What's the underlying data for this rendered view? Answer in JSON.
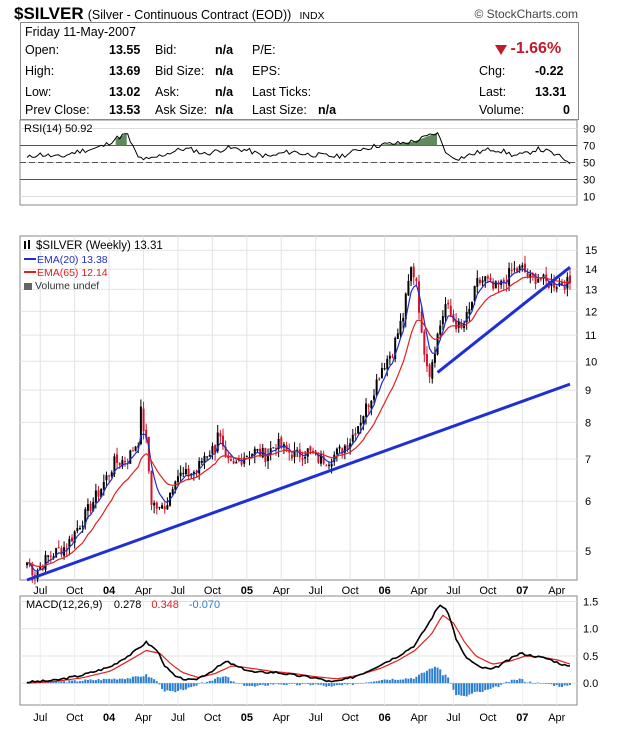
{
  "header": {
    "symbol": "$SILVER",
    "description": "(Silver - Continuous Contract (EOD))",
    "exchange": "INDX",
    "brand": "© StockCharts.com"
  },
  "quote": {
    "date": "Friday 11-May-2007",
    "open_label": "Open:",
    "open": "13.55",
    "high_label": "High:",
    "high": "13.69",
    "low_label": "Low:",
    "low": "13.02",
    "prevclose_label": "Prev Close:",
    "prevclose": "13.53",
    "bid_label": "Bid:",
    "bid": "n/a",
    "bidsize_label": "Bid Size:",
    "bidsize": "n/a",
    "ask_label": "Ask:",
    "ask": "n/a",
    "asksize_label": "Ask Size:",
    "asksize": "n/a",
    "pe_label": "P/E:",
    "eps_label": "EPS:",
    "lastticks_label": "Last Ticks:",
    "lastsize_label": "Last Size:",
    "lastsize": "n/a",
    "pct_change": "-1.66%",
    "chg_label": "Chg:",
    "chg": "-0.22",
    "last_label": "Last:",
    "last": "13.31",
    "volume_label": "Volume:",
    "volume": "0",
    "colors": {
      "down": "#c01b2a"
    }
  },
  "chart_data": [
    {
      "type": "line",
      "panel": "rsi",
      "legend": "RSI(14) 50.92",
      "y_ticks": [
        10,
        30,
        50,
        70,
        90
      ],
      "ylim": [
        0,
        100
      ],
      "reference_lines": [
        70,
        50,
        30
      ],
      "x": [
        0,
        4,
        8,
        12,
        16,
        20,
        24,
        28,
        32,
        36,
        40,
        44,
        48,
        52,
        56,
        60,
        64,
        68,
        72,
        76,
        80,
        84,
        88,
        92,
        96,
        100,
        104,
        108,
        112,
        116,
        120,
        124,
        128,
        132,
        136,
        140,
        144,
        148,
        152,
        156,
        160,
        164,
        168,
        172,
        176,
        180,
        184,
        188,
        192,
        196
      ],
      "values": [
        55,
        60,
        58,
        56,
        61,
        64,
        66,
        70,
        78,
        84,
        56,
        53,
        58,
        62,
        66,
        65,
        60,
        63,
        67,
        66,
        64,
        59,
        57,
        61,
        63,
        60,
        59,
        58,
        57,
        60,
        66,
        68,
        71,
        72,
        73,
        75,
        80,
        85,
        58,
        55,
        59,
        63,
        66,
        63,
        58,
        60,
        66,
        63,
        57,
        51
      ],
      "color": "#000000",
      "overbought_fill": "#5f8a5c"
    },
    {
      "type": "candlestick",
      "panel": "price",
      "title": "$SILVER (Weekly) 13.31",
      "scale": "log",
      "y_ticks": [
        5,
        6,
        7,
        8,
        9,
        10,
        11,
        12,
        13,
        14,
        15
      ],
      "ylim": [
        4.5,
        15.8
      ],
      "x_ticks": [
        {
          "label": "Jul",
          "i": 5
        },
        {
          "label": "Oct",
          "i": 18
        },
        {
          "label": "04",
          "i": 31
        },
        {
          "label": "Apr",
          "i": 44
        },
        {
          "label": "Jul",
          "i": 57
        },
        {
          "label": "Oct",
          "i": 70
        },
        {
          "label": "05",
          "i": 83
        },
        {
          "label": "Apr",
          "i": 96
        },
        {
          "label": "Jul",
          "i": 109
        },
        {
          "label": "Oct",
          "i": 122
        },
        {
          "label": "06",
          "i": 135
        },
        {
          "label": "Apr",
          "i": 148
        },
        {
          "label": "Jul",
          "i": 161
        },
        {
          "label": "Oct",
          "i": 174
        },
        {
          "label": "07",
          "i": 187
        },
        {
          "label": "Apr",
          "i": 200
        }
      ],
      "close_anchors": [
        [
          0,
          4.8
        ],
        [
          3,
          4.6
        ],
        [
          8,
          4.9
        ],
        [
          15,
          5.1
        ],
        [
          22,
          5.7
        ],
        [
          28,
          6.3
        ],
        [
          33,
          6.9
        ],
        [
          38,
          7.0
        ],
        [
          42,
          7.5
        ],
        [
          43,
          8.3
        ],
        [
          45,
          7.4
        ],
        [
          47,
          6.0
        ],
        [
          50,
          5.8
        ],
        [
          53,
          6.0
        ],
        [
          56,
          6.6
        ],
        [
          60,
          6.6
        ],
        [
          64,
          6.7
        ],
        [
          67,
          7.1
        ],
        [
          71,
          7.3
        ],
        [
          72,
          7.8
        ],
        [
          75,
          6.9
        ],
        [
          78,
          6.8
        ],
        [
          82,
          7.1
        ],
        [
          86,
          7.2
        ],
        [
          90,
          7.1
        ],
        [
          94,
          7.4
        ],
        [
          98,
          7.2
        ],
        [
          102,
          7.1
        ],
        [
          106,
          7.2
        ],
        [
          110,
          7.0
        ],
        [
          114,
          7.0
        ],
        [
          118,
          7.2
        ],
        [
          122,
          7.5
        ],
        [
          126,
          8.1
        ],
        [
          130,
          8.8
        ],
        [
          134,
          9.8
        ],
        [
          138,
          10.4
        ],
        [
          142,
          11.8
        ],
        [
          145,
          14.0
        ],
        [
          147,
          13.5
        ],
        [
          149,
          10.9
        ],
        [
          152,
          9.6
        ],
        [
          155,
          11.0
        ],
        [
          158,
          12.3
        ],
        [
          161,
          11.6
        ],
        [
          164,
          11.2
        ],
        [
          167,
          12.0
        ],
        [
          170,
          13.3
        ],
        [
          173,
          13.5
        ],
        [
          176,
          13.0
        ],
        [
          179,
          13.2
        ],
        [
          183,
          13.9
        ],
        [
          187,
          14.0
        ],
        [
          190,
          13.5
        ],
        [
          193,
          13.6
        ],
        [
          196,
          13.3
        ]
      ],
      "ema_series": [
        {
          "name": "EMA(20) 13.38",
          "period": 20,
          "color": "#1f2fc4"
        },
        {
          "name": "EMA(65) 12.14",
          "period": 65,
          "color": "#e02020"
        }
      ],
      "volume_legend": "Volume undef",
      "trendlines": [
        {
          "from": [
            0,
            4.5
          ],
          "to": [
            205,
            9.2
          ],
          "color": "#1f2fd6"
        },
        {
          "from": [
            155,
            9.6
          ],
          "to": [
            205,
            14.1
          ],
          "color": "#1f2fd6"
        }
      ],
      "up_color": "#000000",
      "down_color": "#d0142c"
    },
    {
      "type": "line",
      "panel": "macd",
      "legend": [
        "MACD(12,26,9)",
        "0.278",
        "0.348",
        "-0.070"
      ],
      "legend_colors": [
        "#000000",
        "#000000",
        "#e02020",
        "#2a7fd0"
      ],
      "y_ticks": [
        0.0,
        0.5,
        1.0,
        1.5
      ],
      "ylim": [
        -0.4,
        1.6
      ],
      "series": [
        {
          "name": "MACD",
          "color": "#000000",
          "anchors": [
            [
              0,
              0.02
            ],
            [
              10,
              0.05
            ],
            [
              20,
              0.15
            ],
            [
              30,
              0.3
            ],
            [
              38,
              0.55
            ],
            [
              43,
              0.75
            ],
            [
              47,
              0.6
            ],
            [
              50,
              0.3
            ],
            [
              54,
              0.1
            ],
            [
              60,
              0.05
            ],
            [
              66,
              0.2
            ],
            [
              72,
              0.4
            ],
            [
              76,
              0.3
            ],
            [
              82,
              0.2
            ],
            [
              90,
              0.2
            ],
            [
              96,
              0.15
            ],
            [
              104,
              0.1
            ],
            [
              110,
              0.02
            ],
            [
              116,
              0.08
            ],
            [
              122,
              0.2
            ],
            [
              128,
              0.35
            ],
            [
              134,
              0.5
            ],
            [
              140,
              0.7
            ],
            [
              145,
              1.1
            ],
            [
              149,
              1.45
            ],
            [
              152,
              1.3
            ],
            [
              155,
              0.8
            ],
            [
              158,
              0.5
            ],
            [
              163,
              0.3
            ],
            [
              168,
              0.25
            ],
            [
              173,
              0.4
            ],
            [
              178,
              0.55
            ],
            [
              183,
              0.5
            ],
            [
              188,
              0.45
            ],
            [
              193,
              0.35
            ],
            [
              196,
              0.3
            ]
          ]
        },
        {
          "name": "Signal",
          "color": "#e02020",
          "anchors": [
            [
              0,
              0.0
            ],
            [
              10,
              0.03
            ],
            [
              20,
              0.1
            ],
            [
              30,
              0.22
            ],
            [
              38,
              0.45
            ],
            [
              43,
              0.6
            ],
            [
              48,
              0.55
            ],
            [
              52,
              0.35
            ],
            [
              56,
              0.2
            ],
            [
              62,
              0.1
            ],
            [
              68,
              0.18
            ],
            [
              74,
              0.32
            ],
            [
              80,
              0.28
            ],
            [
              88,
              0.22
            ],
            [
              96,
              0.18
            ],
            [
              104,
              0.12
            ],
            [
              112,
              0.08
            ],
            [
              120,
              0.15
            ],
            [
              128,
              0.28
            ],
            [
              134,
              0.42
            ],
            [
              140,
              0.6
            ],
            [
              146,
              0.9
            ],
            [
              150,
              1.25
            ],
            [
              154,
              1.1
            ],
            [
              158,
              0.75
            ],
            [
              162,
              0.5
            ],
            [
              168,
              0.35
            ],
            [
              174,
              0.4
            ],
            [
              180,
              0.5
            ],
            [
              186,
              0.48
            ],
            [
              192,
              0.42
            ],
            [
              196,
              0.35
            ]
          ]
        }
      ],
      "histogram_color": "#2a7fd0"
    }
  ]
}
